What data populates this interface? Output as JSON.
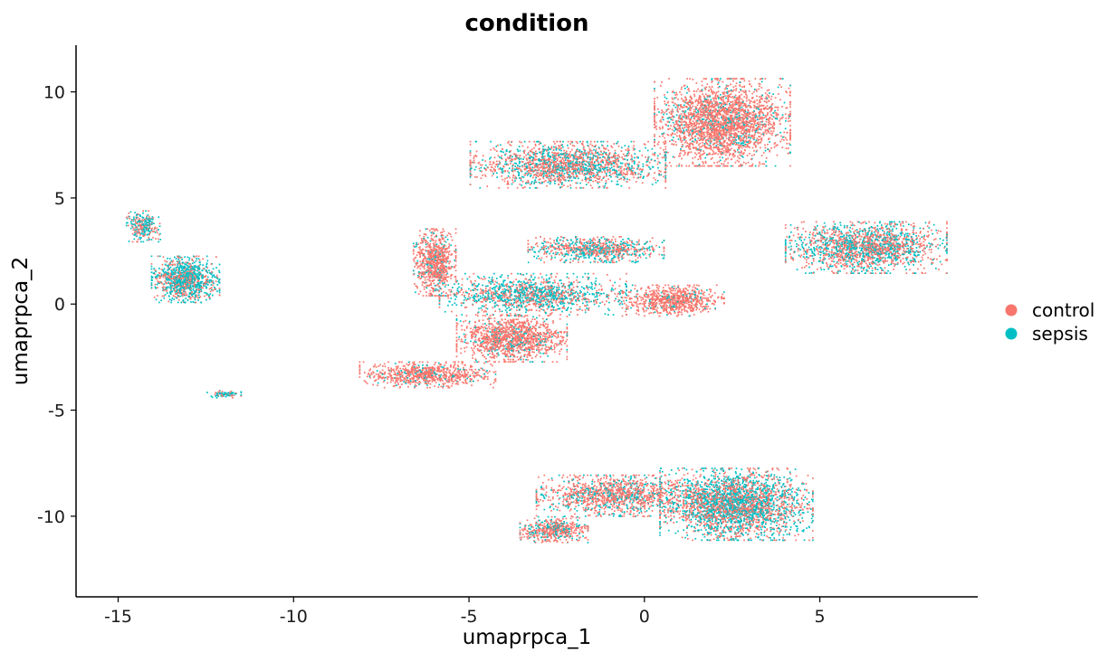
{
  "chart_data": {
    "type": "scatter",
    "title": "condition",
    "xlabel": "umaprpca_1",
    "ylabel": "umaprpca_2",
    "xlim": [
      -16.2,
      9.5
    ],
    "ylim": [
      -13.8,
      12.2
    ],
    "xticks": [
      -15,
      -10,
      -5,
      0,
      5
    ],
    "yticks": [
      -10,
      -5,
      0,
      5,
      10
    ],
    "xtick_labels": [
      "-15",
      "-10",
      "-5",
      "0",
      "5"
    ],
    "ytick_labels": [
      "-10",
      "-5",
      "0",
      "5",
      "10"
    ],
    "grid": false,
    "legend_position": "right",
    "series": [
      {
        "name": "control",
        "color": "#F8766D"
      },
      {
        "name": "sepsis",
        "color": "#00BFC4"
      }
    ],
    "clusters": [
      {
        "center": [
          2.2,
          8.6
        ],
        "spread": [
          1.6,
          1.7
        ],
        "mix": 0.85,
        "weight": 10
      },
      {
        "center": [
          -2.2,
          6.6
        ],
        "spread": [
          2.3,
          0.9
        ],
        "mix": 0.62,
        "weight": 7
      },
      {
        "center": [
          6.3,
          2.7
        ],
        "spread": [
          1.9,
          1.0
        ],
        "mix": 0.55,
        "weight": 7
      },
      {
        "center": [
          -6.0,
          2.0
        ],
        "spread": [
          0.5,
          1.3
        ],
        "mix": 0.85,
        "weight": 3
      },
      {
        "center": [
          -3.2,
          0.5
        ],
        "spread": [
          2.2,
          0.8
        ],
        "mix": 0.45,
        "weight": 5
      },
      {
        "center": [
          -1.4,
          2.6
        ],
        "spread": [
          1.6,
          0.5
        ],
        "mix": 0.55,
        "weight": 3
      },
      {
        "center": [
          -3.8,
          -1.6
        ],
        "spread": [
          1.3,
          0.9
        ],
        "mix": 0.85,
        "weight": 5
      },
      {
        "center": [
          -6.2,
          -3.3
        ],
        "spread": [
          1.6,
          0.5
        ],
        "mix": 0.88,
        "weight": 3
      },
      {
        "center": [
          0.8,
          0.2
        ],
        "spread": [
          1.2,
          0.6
        ],
        "mix": 0.9,
        "weight": 3
      },
      {
        "center": [
          2.6,
          -9.4
        ],
        "spread": [
          1.8,
          1.4
        ],
        "mix": 0.5,
        "weight": 11
      },
      {
        "center": [
          -0.8,
          -9.0
        ],
        "spread": [
          1.9,
          0.8
        ],
        "mix": 0.72,
        "weight": 5
      },
      {
        "center": [
          -2.6,
          -10.6
        ],
        "spread": [
          0.8,
          0.5
        ],
        "mix": 0.7,
        "weight": 2
      },
      {
        "center": [
          -13.1,
          1.2
        ],
        "spread": [
          0.8,
          0.9
        ],
        "mix": 0.4,
        "weight": 4
      },
      {
        "center": [
          -14.3,
          3.7
        ],
        "spread": [
          0.4,
          0.6
        ],
        "mix": 0.45,
        "weight": 1
      },
      {
        "center": [
          -12.0,
          -4.2
        ],
        "spread": [
          0.4,
          0.15
        ],
        "mix": 0.35,
        "weight": 0.3
      }
    ]
  }
}
